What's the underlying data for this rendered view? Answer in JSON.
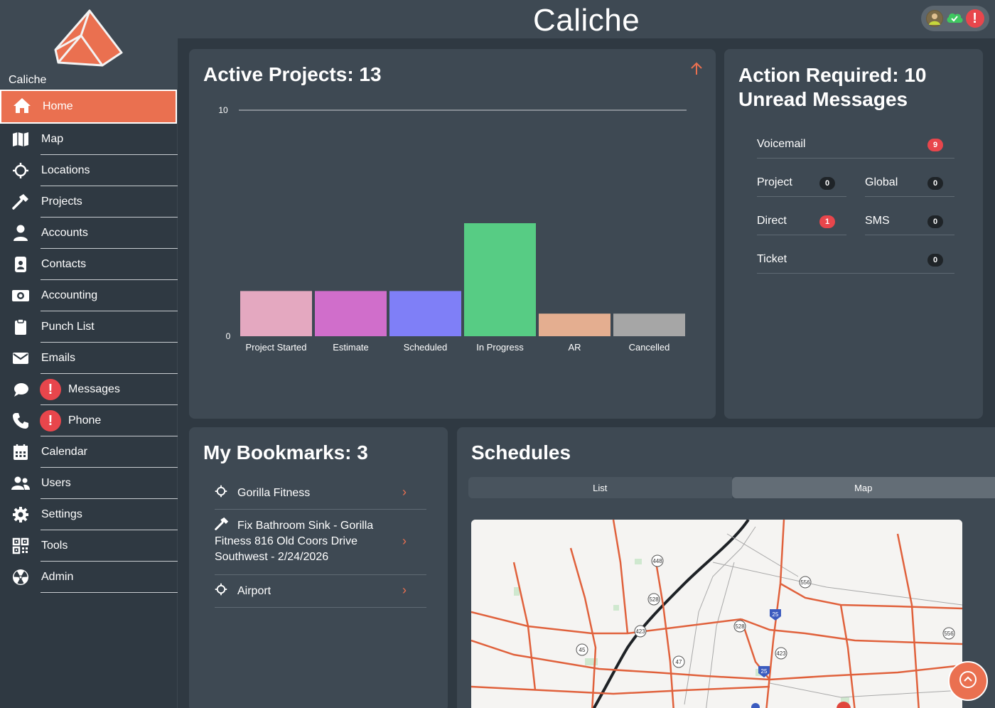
{
  "app": {
    "name": "Caliche",
    "brand_title": "Caliche"
  },
  "colors": {
    "accent": "#ea7050",
    "alert": "#e8464c",
    "panel": "#3e4953",
    "background": "#2f3942"
  },
  "sidebar": {
    "items": [
      {
        "label": "Home",
        "icon": "home-icon",
        "active": true
      },
      {
        "label": "Map",
        "icon": "map-icon"
      },
      {
        "label": "Locations",
        "icon": "crosshair-icon"
      },
      {
        "label": "Projects",
        "icon": "hammer-icon"
      },
      {
        "label": "Accounts",
        "icon": "user-icon"
      },
      {
        "label": "Contacts",
        "icon": "contact-card-icon"
      },
      {
        "label": "Accounting",
        "icon": "money-icon"
      },
      {
        "label": "Punch List",
        "icon": "clipboard-icon"
      },
      {
        "label": "Emails",
        "icon": "envelope-icon"
      },
      {
        "label": "Messages",
        "icon": "chat-icon",
        "alert": "!"
      },
      {
        "label": "Phone",
        "icon": "phone-icon",
        "alert": "!"
      },
      {
        "label": "Calendar",
        "icon": "calendar-icon"
      },
      {
        "label": "Users",
        "icon": "users-icon"
      },
      {
        "label": "Settings",
        "icon": "gear-icon"
      },
      {
        "label": "Tools",
        "icon": "qr-icon"
      },
      {
        "label": "Admin",
        "icon": "radiation-icon"
      }
    ]
  },
  "topbar": {
    "alert": "!"
  },
  "projects": {
    "title": "Active Projects: 13"
  },
  "chart_data": {
    "type": "bar",
    "categories": [
      "Project Started",
      "Estimate",
      "Scheduled",
      "In Progress",
      "AR",
      "Cancelled"
    ],
    "values": [
      2,
      2,
      2,
      5,
      1,
      1
    ],
    "colors": [
      "#e4a8c0",
      "#d06ecb",
      "#7f7ff7",
      "#57cc84",
      "#e4ae90",
      "#a6a6a6"
    ],
    "yticks": [
      "0",
      "10"
    ],
    "ylim": [
      0,
      10
    ],
    "grid": true
  },
  "action": {
    "title": "Action Required: 10 Unread Messages",
    "rows": [
      {
        "label": "Voicemail",
        "count": "9",
        "red": true
      },
      {
        "label": "Project",
        "count": "0"
      },
      {
        "label": "Global",
        "count": "0"
      },
      {
        "label": "Direct",
        "count": "1",
        "red": true
      },
      {
        "label": "SMS",
        "count": "0"
      },
      {
        "label": "Ticket",
        "count": "0"
      }
    ]
  },
  "bookmarks": {
    "title": "My Bookmarks: 3",
    "items": [
      {
        "text": "Gorilla Fitness",
        "icon": "crosshair-icon"
      },
      {
        "text": "Fix Bathroom Sink - Gorilla Fitness 816 Old Coors Drive Southwest - 2/24/2026",
        "icon": "hammer-icon"
      },
      {
        "text": "Airport",
        "icon": "crosshair-icon"
      }
    ]
  },
  "schedules": {
    "title": "Schedules",
    "tabs": [
      "List",
      "Map"
    ],
    "active_tab": "Map",
    "map_labels": [
      "448",
      "556",
      "528",
      "25",
      "423",
      "45",
      "47",
      "556",
      "528",
      "25",
      "423"
    ]
  }
}
